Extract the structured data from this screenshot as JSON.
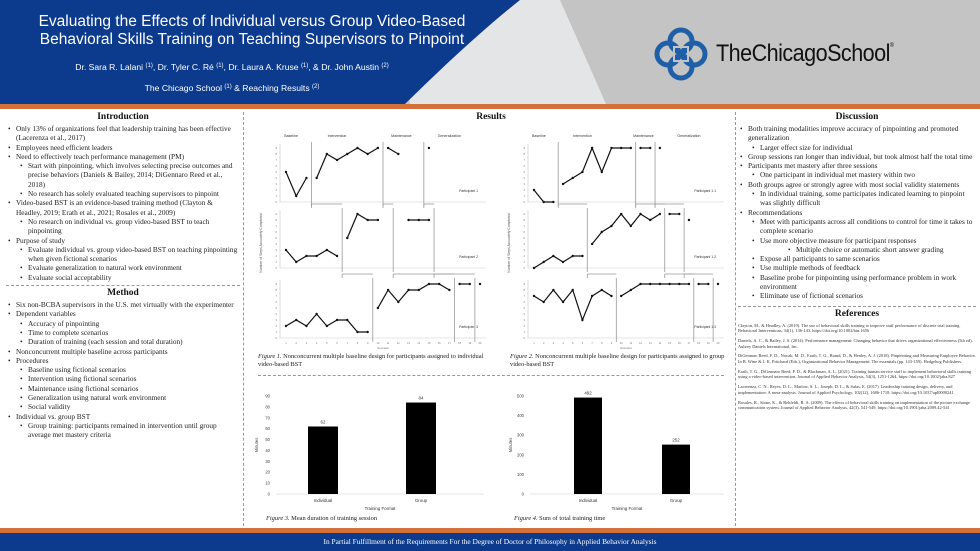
{
  "header": {
    "title_line1": "Evaluating the Effects of Individual versus Group Video-Based",
    "title_line2": "Behavioral Skills Training on Teaching Supervisors to Pinpoint",
    "authors": [
      {
        "name": "Dr. Sara R. Lalani",
        "aff": "(1)"
      },
      {
        "name": "Dr. Tyler C. Ré",
        "aff": "(1)"
      },
      {
        "name": "Dr. Laura A. Kruse",
        "aff": "(1)"
      },
      {
        "name": "Dr. John Austin",
        "aff": "(2)"
      }
    ],
    "affiliation1": "The Chicago School",
    "affiliation1_mark": "(1)",
    "affiliation_joiner": "&",
    "affiliation2": "Reaching Results",
    "affiliation2_mark": "(2)",
    "logo_text": "TheChicagoSchool",
    "logo_mark": "®",
    "colors": {
      "blue": "#0c3a8c",
      "orange": "#d4713b",
      "gray": "#c4c4c4",
      "logo_blue": "#1f5fa8"
    }
  },
  "introduction": {
    "heading": "Introduction",
    "items": [
      {
        "level": 1,
        "text": "Only 13% of organizations feel that leadership training has been effective (Lacerenza et al., 2017)"
      },
      {
        "level": 1,
        "text": "Employees need efficient leaders"
      },
      {
        "level": 1,
        "text": "Need to effectively teach performance management (PM)"
      },
      {
        "level": 2,
        "text": "Start with pinpointing, which involves selecting precise outcomes and precise behaviors (Daniels & Bailey, 2014; DiGennaro Reed et al., 2018)"
      },
      {
        "level": 2,
        "text": "No research has solely evaluated teaching supervisors to pinpoint"
      },
      {
        "level": 1,
        "text": "Video-based BST is an evidence-based training method (Clayton & Headley, 2019; Erath et al., 2021; Rosales et al., 2009)"
      },
      {
        "level": 2,
        "text": "No research on individual vs. group video-based BST to teach pinpointing"
      },
      {
        "level": 1,
        "text": "Purpose of study"
      },
      {
        "level": 2,
        "text": "Evaluate individual vs. group video-based BST on teaching pinpointing when given fictional scenarios"
      },
      {
        "level": 2,
        "text": "Evaluate generalization to natural work environment"
      },
      {
        "level": 2,
        "text": "Evaluate social acceptability"
      }
    ]
  },
  "method": {
    "heading": "Method",
    "items": [
      {
        "level": 1,
        "text": "Six non-BCBA supervisors in the U.S. met virtually with the experimenter"
      },
      {
        "level": 1,
        "text": "Dependent variables"
      },
      {
        "level": 2,
        "text": "Accuracy of pinpointing"
      },
      {
        "level": 2,
        "text": "Time to complete scenarios"
      },
      {
        "level": 2,
        "text": "Duration of training (each session and total duration)"
      },
      {
        "level": 1,
        "text": "Nonconcurrent multiple baseline across participants"
      },
      {
        "level": 1,
        "text": "Procedures"
      },
      {
        "level": 2,
        "text": "Baseline using fictional scenarios"
      },
      {
        "level": 2,
        "text": "Intervention using fictional scenarios"
      },
      {
        "level": 2,
        "text": "Maintenance using fictional scenarios"
      },
      {
        "level": 2,
        "text": "Generalization using natural work environment"
      },
      {
        "level": 2,
        "text": "Social validity"
      },
      {
        "level": 1,
        "text": "Individual vs. group BST"
      },
      {
        "level": 2,
        "text": "Group training: participants remained in intervention until group average met mastery criteria"
      }
    ]
  },
  "results": {
    "heading": "Results",
    "fig1_caption_label": "Figure 1.",
    "fig1_caption": "Nonconcurrent multiple baseline design for participants assigned to individual video-based BST",
    "fig2_caption_label": "Figure 2.",
    "fig2_caption": "Nonconcurrent multiple baseline design for participants assigned to group video-based BST",
    "fig3_caption_label": "Figure 3.",
    "fig3_caption": "Mean duration of training session",
    "fig4_caption_label": "Figure 4.",
    "fig4_caption": "Sum of total training time"
  },
  "chart_data": [
    {
      "type": "line",
      "title": "Figure 1. Nonconcurrent multiple baseline design (individual)",
      "xlabel": "Scenario",
      "ylabel": "Number of Steps Accurately Completed",
      "phases": [
        "Baseline",
        "Intervention",
        "Maintenance",
        "Generalization"
      ],
      "x": [
        1,
        2,
        3,
        4,
        5,
        6,
        7,
        8,
        9,
        10,
        11,
        12,
        13,
        14,
        15,
        16,
        17,
        18,
        19,
        20
      ],
      "ylim": [
        0,
        9
      ],
      "series": [
        {
          "name": "Participant 1",
          "points": [
            [
              1,
              5
            ],
            [
              2,
              1
            ],
            [
              3,
              4
            ],
            [
              4,
              4
            ],
            [
              5,
              8
            ],
            [
              6,
              7
            ],
            [
              7,
              8
            ],
            [
              8,
              9
            ],
            [
              9,
              8
            ],
            [
              10,
              9
            ],
            [
              11,
              9
            ],
            [
              12,
              8
            ],
            [
              15,
              9
            ]
          ],
          "phase_breaks": [
            3.5,
            10.5,
            14.5
          ]
        },
        {
          "name": "Participant 2",
          "points": [
            [
              1,
              3
            ],
            [
              2,
              1
            ],
            [
              3,
              2
            ],
            [
              4,
              2
            ],
            [
              5,
              3
            ],
            [
              6,
              2
            ],
            [
              7,
              5
            ],
            [
              8,
              9
            ],
            [
              9,
              8
            ],
            [
              10,
              8
            ],
            [
              13,
              8
            ],
            [
              14,
              8
            ],
            [
              15,
              8
            ]
          ],
          "phase_breaks": [
            6.5,
            11.5,
            15.5
          ]
        },
        {
          "name": "Participant 3",
          "points": [
            [
              1,
              2
            ],
            [
              2,
              3
            ],
            [
              3,
              2
            ],
            [
              4,
              4
            ],
            [
              5,
              2
            ],
            [
              6,
              3
            ],
            [
              7,
              3
            ],
            [
              8,
              1
            ],
            [
              9,
              1
            ],
            [
              10,
              5
            ],
            [
              11,
              8
            ],
            [
              12,
              6
            ],
            [
              13,
              8
            ],
            [
              14,
              8
            ],
            [
              15,
              9
            ],
            [
              16,
              9
            ],
            [
              17,
              8
            ],
            [
              18,
              9
            ],
            [
              19,
              9
            ],
            [
              20,
              9
            ]
          ],
          "phase_breaks": [
            9.5,
            17.5,
            19.5
          ]
        }
      ]
    },
    {
      "type": "line",
      "title": "Figure 2. Nonconcurrent multiple baseline design (group)",
      "xlabel": "Scenario",
      "ylabel": "Number of Steps Accurately Completed",
      "phases": [
        "Baseline",
        "Intervention",
        "Maintenance",
        "Generalization"
      ],
      "x": [
        1,
        2,
        3,
        4,
        5,
        6,
        7,
        8,
        9,
        10,
        11,
        12,
        13,
        14,
        15,
        16,
        17,
        18,
        19,
        20
      ],
      "ylim": [
        0,
        9
      ],
      "series": [
        {
          "name": "Participant 1.1",
          "points": [
            [
              1,
              2
            ],
            [
              2,
              0
            ],
            [
              3,
              0
            ],
            [
              4,
              3
            ],
            [
              5,
              4
            ],
            [
              6,
              5
            ],
            [
              7,
              9
            ],
            [
              8,
              5
            ],
            [
              9,
              9
            ],
            [
              10,
              9
            ],
            [
              11,
              9
            ],
            [
              12,
              9
            ],
            [
              13,
              9
            ],
            [
              14,
              9
            ]
          ],
          "phase_breaks": [
            3.5,
            11.5,
            13.5
          ]
        },
        {
          "name": "Participant 1.2",
          "points": [
            [
              1,
              0
            ],
            [
              2,
              1
            ],
            [
              3,
              2
            ],
            [
              4,
              1
            ],
            [
              5,
              2
            ],
            [
              6,
              2
            ],
            [
              7,
              4
            ],
            [
              8,
              6
            ],
            [
              9,
              7
            ],
            [
              10,
              9
            ],
            [
              11,
              7
            ],
            [
              12,
              9
            ],
            [
              13,
              8
            ],
            [
              14,
              9
            ],
            [
              15,
              9
            ],
            [
              16,
              9
            ],
            [
              17,
              8
            ]
          ],
          "phase_breaks": [
            6.5,
            14.5,
            16.5
          ]
        },
        {
          "name": "Participant 1.3",
          "points": [
            [
              1,
              7
            ],
            [
              2,
              6
            ],
            [
              3,
              8
            ],
            [
              4,
              6
            ],
            [
              5,
              8
            ],
            [
              6,
              3
            ],
            [
              7,
              7
            ],
            [
              8,
              8
            ],
            [
              9,
              7
            ],
            [
              10,
              7
            ],
            [
              11,
              8
            ],
            [
              12,
              9
            ],
            [
              13,
              9
            ],
            [
              14,
              9
            ],
            [
              15,
              9
            ],
            [
              16,
              9
            ],
            [
              17,
              9
            ],
            [
              18,
              9
            ],
            [
              19,
              9
            ],
            [
              20,
              9
            ]
          ],
          "phase_breaks": [
            9.5,
            17.5,
            19.5
          ]
        }
      ]
    },
    {
      "type": "bar",
      "title": "Figure 3. Mean duration of training session",
      "categories": [
        "Individual",
        "Group"
      ],
      "values": [
        62,
        84
      ],
      "xlabel": "Training Format",
      "ylabel": "Minutes",
      "ylim": [
        0,
        90
      ],
      "yticks": [
        0,
        10,
        20,
        30,
        40,
        50,
        60,
        70,
        80,
        90
      ]
    },
    {
      "type": "bar",
      "title": "Figure 4. Sum of total training time",
      "categories": [
        "Individual",
        "Group"
      ],
      "values": [
        492,
        252
      ],
      "xlabel": "Training Format",
      "ylabel": "Minutes",
      "ylim": [
        0,
        500
      ],
      "yticks": [
        0,
        100,
        200,
        300,
        400,
        500
      ]
    }
  ],
  "discussion": {
    "heading": "Discussion",
    "items": [
      {
        "level": 1,
        "text": "Both training modalities improve accuracy of pinpointing and promoted generalization"
      },
      {
        "level": 2,
        "text": "Larger effect size for individual"
      },
      {
        "level": 1,
        "text": "Group sessions ran longer than individual, but took almost half the total time"
      },
      {
        "level": 1,
        "text": "Participants met mastery after three sessions"
      },
      {
        "level": 2,
        "text": "One participant in individual met mastery within two"
      },
      {
        "level": 1,
        "text": "Both groups agree or strongly agree with most social validity statements"
      },
      {
        "level": 2,
        "text": "In individual training, some participates indicated learning to pinpoint was slightly difficult"
      },
      {
        "level": 1,
        "text": "Recommendations"
      },
      {
        "level": 2,
        "text": "Meet with participants across all conditions to control for time it takes to complete scenario"
      },
      {
        "level": 2,
        "text": "Use more objective measure for participant responses"
      },
      {
        "level": 3,
        "text": "Multiple choice or automatic short answer grading"
      },
      {
        "level": 2,
        "text": "Expose all participants to same scenarios"
      },
      {
        "level": 2,
        "text": "Use multiple methods of feedback"
      },
      {
        "level": 2,
        "text": "Baseline probe for pinpointing using performance problem in work environment"
      },
      {
        "level": 2,
        "text": "Eliminate use of fictional scenarios"
      }
    ]
  },
  "references": {
    "heading": "References",
    "items": [
      "Clayton, M., & Headley, A. (2019). The use of behavioral skills training to improve staff performance of discrete trial training. Behavioral Interventions, 34(1), 136-143. https://doi.org/10.1002/bin.1656",
      "Daniels, A. C., & Bailey, J. S. (2014). Performance management: Changing behavior that drives organizational effectiveness (5th ed). Aubrey Daniels International, Inc.",
      "DiGennaro Reed, F. D., Novak, M. D., Erath, T. G., Brand, D., & Henley, A. J. (2018). Pinpointing and Measuring Employee Behavior. In B. Wine & J. K. Pritchard (Eds.), Organizational Behavior Management: The essentials (pp. 143-159). Hedgehog Publishers.",
      "Erath, T. G., DiGennaro Reed, F. D., & Blackman, A. L. (2021). Training human service staff to implement behavioral skills training using a video-based intervention. Journal of Applied Behavior Analysis, 54(3), 1251-1264. https://doi.org/10.1002/jaba.827",
      "Lacerenza, C. N., Reyes, D. L., Marlow, S. L., Joseph, D. L., & Salas, E. (2017). Leadership training design, delivery, and implementation: A meta-analysis. Journal of Applied Psychology, 102(12), 1686-1718. https://doi.org/10.1037/apl0000241",
      "Rosales, R., Stone, K., & Rehfeldt, R. A. (2009). The effects of behavioral skills training on implementation of the picture exchange communication system. Journal of Applied Behavior Analysis, 42(3), 541-549. https://doi.org/10.1901/jaba.2009.42-541"
    ]
  },
  "footer": {
    "text": "In Partial Fulfillment of the Requirements For the Degree of Doctor of Philosophy in Applied Behavior Analysis"
  }
}
